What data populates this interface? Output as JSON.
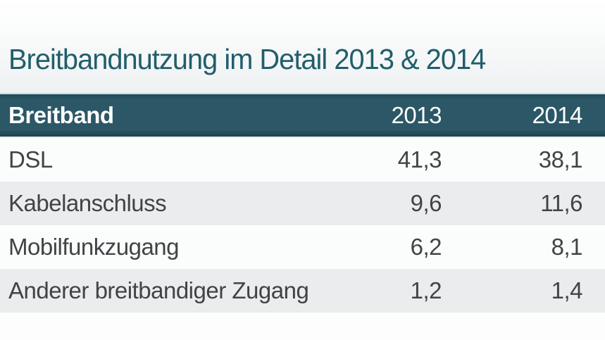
{
  "title": "Breitbandnutzung im Detail 2013 & 2014",
  "table": {
    "columns": [
      "Breitband",
      "2013",
      "2014"
    ],
    "rows": [
      {
        "label": "DSL",
        "y2013": "41,3",
        "y2014": "38,1"
      },
      {
        "label": "Kabelanschluss",
        "y2013": "9,6",
        "y2014": "11,6"
      },
      {
        "label": "Mobilfunkzugang",
        "y2013": "6,2",
        "y2014": "8,1"
      },
      {
        "label": "Anderer breitbandiger Zugang",
        "y2013": "1,2",
        "y2014": "1,4"
      }
    ]
  },
  "chart_data": {
    "type": "table",
    "title": "Breitbandnutzung im Detail 2013 & 2014",
    "columns": [
      "Breitband",
      "2013",
      "2014"
    ],
    "categories": [
      "DSL",
      "Kabelanschluss",
      "Mobilfunkzugang",
      "Anderer breitbandiger Zugang"
    ],
    "series": [
      {
        "name": "2013",
        "values": [
          41.3,
          9.6,
          6.2,
          1.2
        ]
      },
      {
        "name": "2014",
        "values": [
          38.1,
          11.6,
          8.1,
          1.4
        ]
      }
    ],
    "value_format": "decimal-comma",
    "notes": "alternating row shading, numeric columns right-aligned"
  },
  "colors": {
    "title_text": "#215e6b",
    "header_bg": "#2b5766",
    "header_text": "#ffffff",
    "row_bg": "#fbfcfc",
    "row_alt_bg": "#ebeced",
    "row_text": "#414345",
    "title_band_gradient_end": "#eef1f2"
  }
}
